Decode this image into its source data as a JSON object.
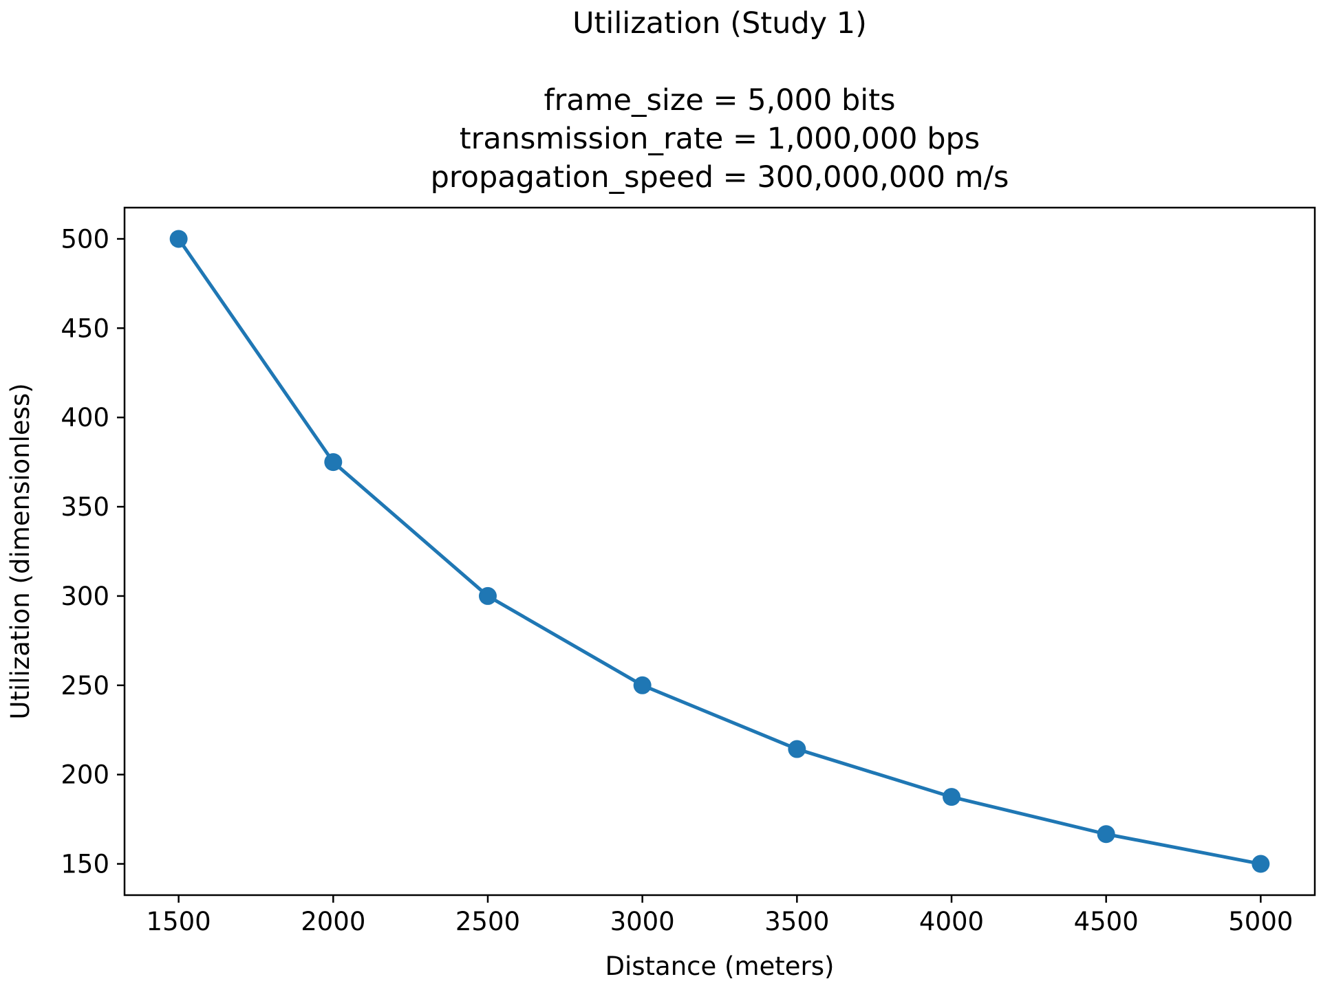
{
  "chart_data": {
    "type": "line",
    "title": "Utilization (Study 1)",
    "subtitle_lines": [
      "frame_size = 5,000 bits",
      "transmission_rate = 1,000,000 bps",
      "propagation_speed = 300,000,000 m/s"
    ],
    "xlabel": "Distance (meters)",
    "ylabel": "Utilization (dimensionless)",
    "x": [
      1500,
      2000,
      2500,
      3000,
      3500,
      4000,
      4500,
      5000
    ],
    "series": [
      {
        "values": [
          500,
          375,
          300,
          250,
          214.29,
          187.5,
          166.67,
          150
        ],
        "color": "#1f77b4",
        "marker": "circle"
      }
    ],
    "xticks": [
      1500,
      2000,
      2500,
      3000,
      3500,
      4000,
      4500,
      5000
    ],
    "yticks": [
      150,
      200,
      250,
      300,
      350,
      400,
      450,
      500
    ],
    "xlim": [
      1325,
      5175
    ],
    "ylim": [
      132.5,
      517.5
    ],
    "grid": false,
    "legend": "none"
  }
}
